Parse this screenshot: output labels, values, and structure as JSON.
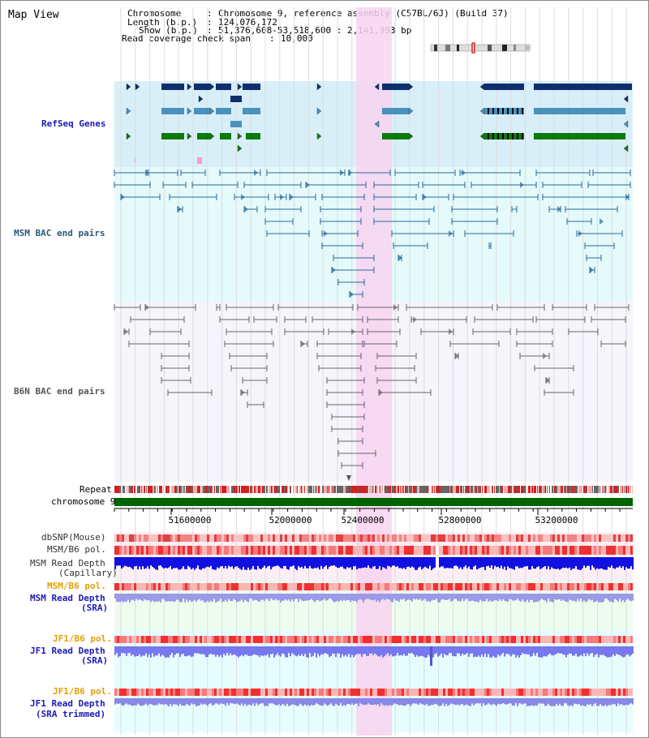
{
  "title": "Map View",
  "info": {
    "chromosome_key": "Chromosome",
    "chromosome_val": "Chromosome 9, reference assembly (C57BL/6J) (Build 37)",
    "length_key": "Length (b.p.)",
    "length_val": "124,076,172",
    "show_key": "Show (b.p.)",
    "show_val": "51,376,608-53,518,600 : 2,141,993 bp",
    "coverage_key": "Read coverage check span",
    "coverage_val": "10,000"
  },
  "tracks": {
    "refseq": "RefSeq Genes",
    "msm_bac": "MSM BAC end pairs",
    "b6n_bac": "B6N BAC end pairs",
    "repeat": "Repeat",
    "chromosome": "chromosome 9",
    "dbsnp": "dbSNP(Mouse)",
    "msm_b6_pol": "MSM/B6 pol.",
    "msm_depth_cap_1": "MSM Read Depth",
    "msm_depth_cap_2": "(Capillary)",
    "msm_b6_pol_2": "MSM/B6 pol.",
    "msm_depth_sra_1": "MSM Read Depth",
    "msm_depth_sra_2": "(SRA)",
    "jf1_pol_1": "JF1/B6 pol.",
    "jf1_depth_1": "JF1 Read Depth",
    "jf1_depth_1b": "(SRA)",
    "jf1_pol_2": "JF1/B6 pol.",
    "jf1_depth_2": "JF1 Read Depth",
    "jf1_depth_2b": "(SRA trimmed)"
  },
  "axis": {
    "ticks": [
      "51600000",
      "52000000",
      "52400000",
      "52800000",
      "53200000"
    ]
  },
  "colors": {
    "refseq_bg": "#d8eff9",
    "msm_bg": "#e4fafb",
    "b6n_bg": "#f5f5fc",
    "highlight": "#f7d3f0",
    "gene_dark": "#0e2e6e",
    "gene_mid": "#4a92bd",
    "gene_green": "#0d7a0d",
    "msm_line": "#2a6a9b",
    "b6n_line": "#666666",
    "chrom_green": "#006400",
    "label_blue": "#1b1bb8",
    "label_teal": "#2a5b7a",
    "label_orange": "#e6a000"
  }
}
